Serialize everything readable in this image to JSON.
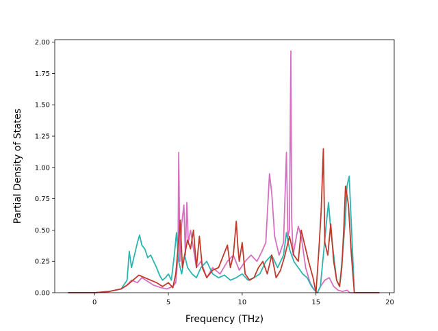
{
  "chart_data": {
    "type": "line",
    "xlabel": "Frequency (THz)",
    "ylabel": "Partial Density of States",
    "xlim": [
      -2.7,
      20.3
    ],
    "ylim": [
      0.0,
      2.02
    ],
    "xticks": [
      0,
      5,
      10,
      15,
      20
    ],
    "xtick_labels": [
      "0",
      "5",
      "10",
      "15",
      "20"
    ],
    "yticks": [
      0.0,
      0.25,
      0.5,
      0.75,
      1.0,
      1.25,
      1.5,
      1.75,
      2.0
    ],
    "ytick_labels": [
      "0.00",
      "0.25",
      "0.50",
      "0.75",
      "1.00",
      "1.25",
      "1.50",
      "1.75",
      "2.00"
    ],
    "grid": false,
    "series": [
      {
        "color": "#d66fc0",
        "x": [
          -1.8,
          0.0,
          1.0,
          1.8,
          2.2,
          2.5,
          2.9,
          3.2,
          3.6,
          4.0,
          4.5,
          4.9,
          5.3,
          5.5,
          5.65,
          5.7,
          5.78,
          5.9,
          6.05,
          6.15,
          6.25,
          6.35,
          6.5,
          6.7,
          6.9,
          7.2,
          7.6,
          8.0,
          8.5,
          9.0,
          9.4,
          9.8,
          10.2,
          10.6,
          11.0,
          11.3,
          11.6,
          11.85,
          12.0,
          12.2,
          12.5,
          12.8,
          13.0,
          13.1,
          13.2,
          13.3,
          13.35,
          13.45,
          13.6,
          13.8,
          14.0,
          14.3,
          14.6,
          14.9,
          15.1,
          15.3,
          15.6,
          15.9,
          16.2,
          16.5,
          16.8,
          17.1,
          17.3,
          17.6,
          18.5,
          19.3
        ],
        "y": [
          0.0,
          0.0,
          0.01,
          0.03,
          0.06,
          0.1,
          0.08,
          0.12,
          0.09,
          0.06,
          0.04,
          0.03,
          0.05,
          0.08,
          0.3,
          1.12,
          0.25,
          0.55,
          0.7,
          0.3,
          0.72,
          0.4,
          0.5,
          0.35,
          0.2,
          0.25,
          0.12,
          0.2,
          0.15,
          0.25,
          0.3,
          0.18,
          0.25,
          0.3,
          0.25,
          0.32,
          0.4,
          0.95,
          0.8,
          0.45,
          0.3,
          0.4,
          1.12,
          0.45,
          0.5,
          1.93,
          0.6,
          0.3,
          0.4,
          0.53,
          0.45,
          0.2,
          0.08,
          0.02,
          0.0,
          0.05,
          0.1,
          0.12,
          0.05,
          0.02,
          0.01,
          0.02,
          0.0,
          0.0,
          0.0,
          0.0
        ]
      },
      {
        "color": "#2ab3b0",
        "x": [
          -1.8,
          0.0,
          1.0,
          1.8,
          2.2,
          2.35,
          2.5,
          2.7,
          2.9,
          3.05,
          3.2,
          3.4,
          3.6,
          3.8,
          4.0,
          4.2,
          4.4,
          4.6,
          4.8,
          5.0,
          5.2,
          5.4,
          5.55,
          5.7,
          5.9,
          6.1,
          6.3,
          6.6,
          6.9,
          7.2,
          7.6,
          8.0,
          8.4,
          8.8,
          9.2,
          9.6,
          10.0,
          10.4,
          10.8,
          11.2,
          11.6,
          12.0,
          12.4,
          12.8,
          13.0,
          13.2,
          13.5,
          13.8,
          14.1,
          14.4,
          14.7,
          14.9,
          15.1,
          15.3,
          15.5,
          15.7,
          15.85,
          16.0,
          16.2,
          16.4,
          16.6,
          16.8,
          17.0,
          17.1,
          17.25,
          17.45,
          17.6,
          18.5,
          19.3
        ],
        "y": [
          0.0,
          0.0,
          0.01,
          0.03,
          0.1,
          0.33,
          0.2,
          0.3,
          0.4,
          0.46,
          0.38,
          0.35,
          0.28,
          0.3,
          0.25,
          0.2,
          0.14,
          0.1,
          0.12,
          0.15,
          0.1,
          0.3,
          0.48,
          0.25,
          0.15,
          0.3,
          0.2,
          0.15,
          0.12,
          0.2,
          0.25,
          0.15,
          0.12,
          0.14,
          0.1,
          0.12,
          0.15,
          0.1,
          0.12,
          0.15,
          0.25,
          0.3,
          0.2,
          0.3,
          0.48,
          0.35,
          0.25,
          0.2,
          0.15,
          0.12,
          0.05,
          0.02,
          0.0,
          0.05,
          0.3,
          0.55,
          0.72,
          0.5,
          0.3,
          0.1,
          0.05,
          0.3,
          0.6,
          0.85,
          0.93,
          0.4,
          0.0,
          0.0,
          0.0
        ]
      },
      {
        "color": "#c0392b",
        "x": [
          -1.8,
          0.0,
          1.0,
          1.8,
          2.2,
          2.6,
          3.0,
          3.4,
          3.8,
          4.2,
          4.6,
          5.0,
          5.3,
          5.5,
          5.7,
          5.8,
          5.95,
          6.1,
          6.3,
          6.5,
          6.7,
          6.9,
          7.1,
          7.3,
          7.6,
          8.0,
          8.4,
          8.8,
          9.0,
          9.2,
          9.4,
          9.6,
          9.7,
          9.8,
          10.0,
          10.2,
          10.5,
          10.8,
          11.1,
          11.4,
          11.7,
          12.0,
          12.3,
          12.6,
          12.9,
          13.2,
          13.5,
          13.8,
          14.0,
          14.2,
          14.5,
          14.8,
          15.0,
          15.2,
          15.35,
          15.5,
          15.6,
          15.8,
          16.0,
          16.2,
          16.4,
          16.6,
          16.75,
          16.9,
          17.0,
          17.2,
          17.4,
          17.6,
          18.5,
          19.3
        ],
        "y": [
          0.0,
          0.0,
          0.01,
          0.03,
          0.06,
          0.1,
          0.14,
          0.12,
          0.1,
          0.08,
          0.05,
          0.08,
          0.04,
          0.15,
          0.42,
          0.58,
          0.2,
          0.3,
          0.42,
          0.35,
          0.5,
          0.2,
          0.45,
          0.2,
          0.12,
          0.18,
          0.2,
          0.32,
          0.38,
          0.2,
          0.3,
          0.57,
          0.38,
          0.25,
          0.4,
          0.15,
          0.1,
          0.12,
          0.2,
          0.25,
          0.15,
          0.3,
          0.12,
          0.18,
          0.3,
          0.45,
          0.3,
          0.25,
          0.5,
          0.4,
          0.25,
          0.12,
          0.0,
          0.35,
          0.65,
          1.15,
          0.4,
          0.3,
          0.55,
          0.25,
          0.1,
          0.05,
          0.2,
          0.55,
          0.85,
          0.7,
          0.3,
          0.0,
          0.0,
          0.0
        ]
      }
    ]
  }
}
